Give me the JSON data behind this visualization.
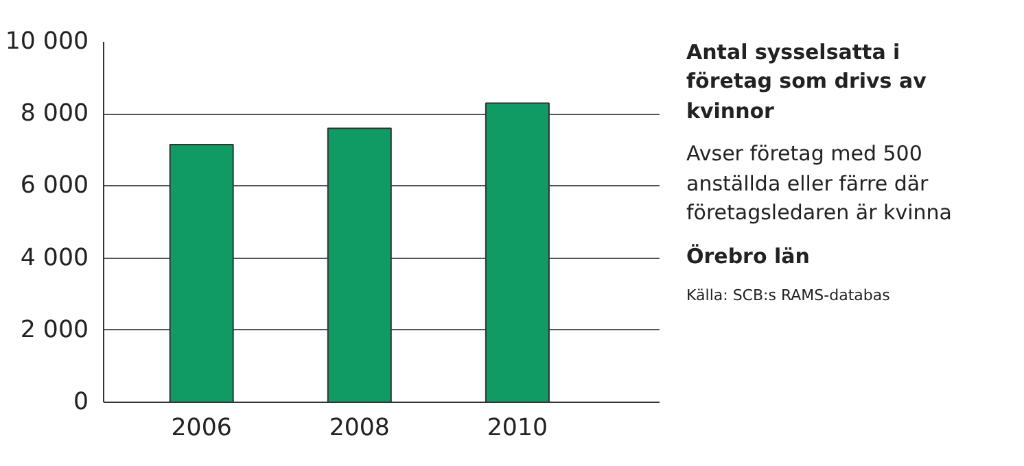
{
  "chart_data": {
    "type": "bar",
    "title": "Antal sysselsatta i företag som drivs av kvinnor",
    "subtitle": "Avser företag med 500 anställda eller färre där företagsledaren är kvinna",
    "annotations": [
      "Örebro län",
      "Källa: SCB:s RAMS-databas"
    ],
    "categories": [
      "2006",
      "2008",
      "2010"
    ],
    "values": [
      7150,
      7600,
      8300
    ],
    "color": "#109a64",
    "ylim": [
      0,
      10000
    ],
    "yticks": [
      {
        "value": 0,
        "label": "0"
      },
      {
        "value": 2000,
        "label": "2 000"
      },
      {
        "value": 4000,
        "label": "4 000"
      },
      {
        "value": 6000,
        "label": "6 000"
      },
      {
        "value": 8000,
        "label": "8 000"
      },
      {
        "value": 10000,
        "label": "10 000"
      }
    ],
    "grid": "y"
  }
}
